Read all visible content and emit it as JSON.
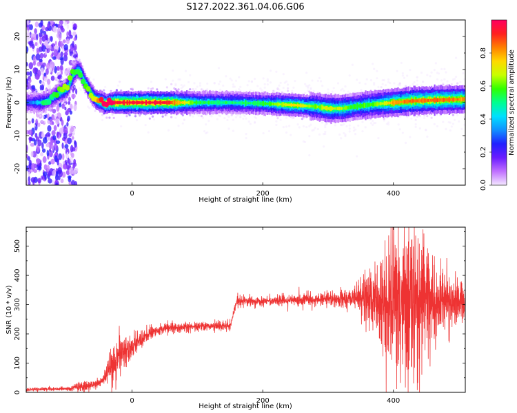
{
  "title": "S127.2022.361.04.06.G06",
  "colors": {
    "snr_line": "#ee3333",
    "frame": "#000000",
    "colormap": [
      "#f4e8ff",
      "#c070ff",
      "#6a1cff",
      "#2020ff",
      "#1090ff",
      "#00e0ff",
      "#00ff90",
      "#30ff00",
      "#c8ff00",
      "#ffd800",
      "#ff8000",
      "#ff2020",
      "#ff0060"
    ]
  },
  "chart_data": [
    {
      "type": "heatmap",
      "name": "spectrogram",
      "xlabel": "Height of straight line (km)",
      "ylabel": "Frequency (Hz)",
      "xlim": [
        -162,
        510
      ],
      "ylim": [
        -25,
        25
      ],
      "xticks": [
        0,
        200,
        400
      ],
      "xtick_labels": [
        "0",
        "200",
        "400"
      ],
      "yticks": [
        -20,
        -10,
        0,
        10,
        20
      ],
      "ytick_labels": [
        "-20",
        "-10",
        "0",
        "10",
        "20"
      ],
      "colorbar": {
        "label": "Normalized spectral amplitude",
        "range": [
          0,
          1
        ],
        "ticks": [
          0.0,
          0.2,
          0.4,
          0.6,
          0.8
        ],
        "tick_labels": [
          "0.0",
          "0.2",
          "0.4",
          "0.6",
          "0.8"
        ]
      },
      "ridge": {
        "x": [
          -155,
          -140,
          -125,
          -112,
          -105,
          -98,
          -92,
          -85,
          -80,
          -75,
          -70,
          -64,
          -57,
          -52,
          -47,
          -42,
          -38,
          -34,
          -30,
          0,
          50,
          100,
          150,
          200,
          250,
          280,
          300,
          320,
          340,
          370,
          400,
          430,
          470,
          510
        ],
        "y": [
          0,
          0,
          1,
          3,
          3.5,
          5,
          8,
          10,
          9.5,
          7,
          5,
          3,
          1,
          0.5,
          0.3,
          -0.5,
          -0.3,
          0,
          0,
          0,
          0,
          0,
          0,
          -0.3,
          -0.8,
          -1.2,
          -1.8,
          -1.8,
          -1.2,
          -0.5,
          0,
          0.5,
          0.8,
          1.0
        ],
        "amplitude": [
          0.3,
          0.45,
          0.4,
          0.5,
          0.55,
          0.55,
          0.5,
          0.45,
          0.45,
          0.45,
          0.5,
          0.55,
          0.6,
          0.7,
          0.85,
          0.9,
          0.9,
          0.95,
          0.95,
          0.95,
          0.95,
          0.55,
          0.5,
          0.55,
          0.75,
          0.6,
          0.7,
          0.65,
          0.55,
          0.6,
          0.8,
          0.85,
          0.85,
          0.8
        ]
      },
      "noise_region_x": [
        -162,
        -85
      ]
    },
    {
      "type": "line",
      "name": "snr",
      "xlabel": "Height of straight line (km)",
      "ylabel": "SNR (10 * v/v)",
      "xlim": [
        -162,
        510
      ],
      "ylim": [
        0,
        565
      ],
      "xticks": [
        0,
        200,
        400
      ],
      "xtick_labels": [
        "0",
        "200",
        "400"
      ],
      "yticks": [
        0,
        100,
        200,
        300,
        400,
        500
      ],
      "ytick_labels": [
        "0",
        "100",
        "200",
        "300",
        "400",
        "500"
      ],
      "envelope": {
        "x": [
          -162,
          -100,
          -80,
          -60,
          -45,
          -35,
          -25,
          -15,
          0,
          15,
          30,
          50,
          100,
          150,
          160,
          170,
          200,
          250,
          300,
          340,
          370,
          400,
          430,
          460,
          490,
          510
        ],
        "mean": [
          10,
          12,
          18,
          25,
          40,
          80,
          110,
          140,
          155,
          185,
          205,
          220,
          225,
          228,
          310,
          310,
          312,
          315,
          318,
          320,
          320,
          315,
          315,
          312,
          310,
          305
        ],
        "spread": [
          4,
          5,
          12,
          12,
          10,
          40,
          60,
          45,
          20,
          20,
          15,
          12,
          12,
          12,
          12,
          12,
          12,
          14,
          16,
          25,
          80,
          180,
          200,
          110,
          60,
          45
        ]
      }
    }
  ]
}
